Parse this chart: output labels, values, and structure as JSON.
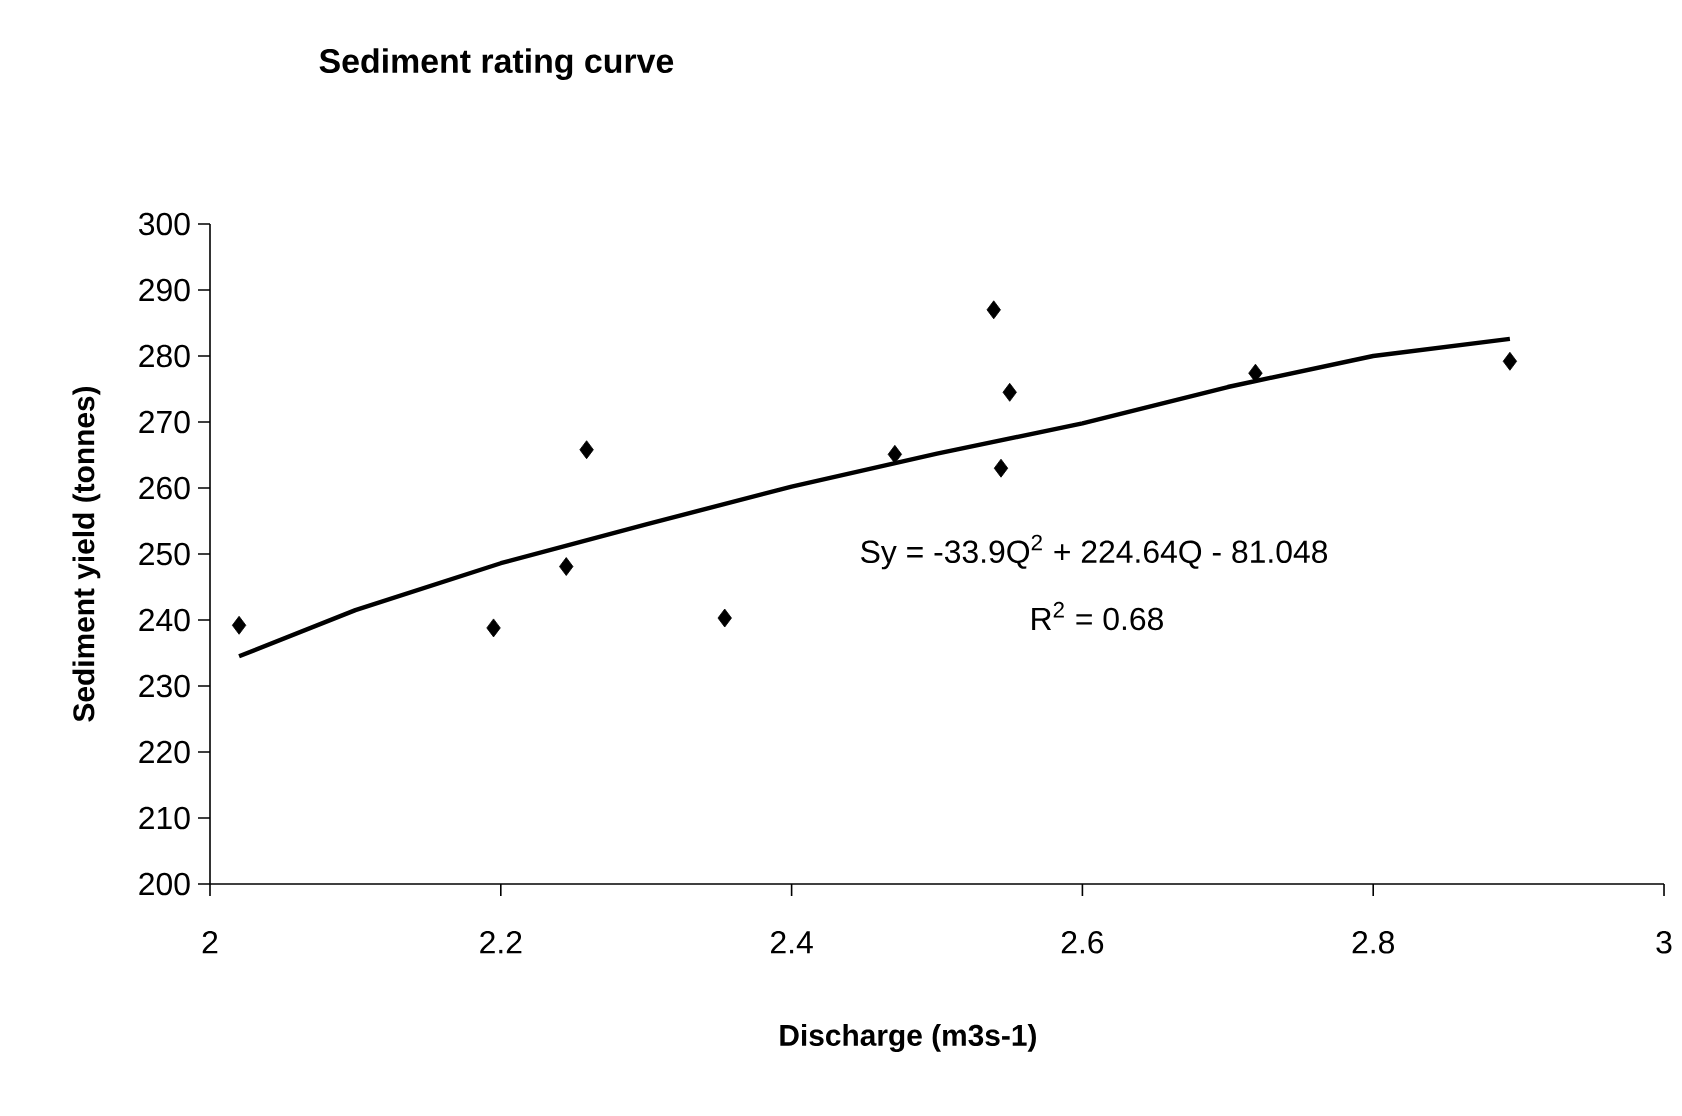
{
  "chart_data": {
    "type": "scatter",
    "title": "Sediment rating curve",
    "xlabel": "Discharge (m3s-1)",
    "ylabel": "Sediment yield (tonnes)",
    "annotations": [
      "Sy = -33.9Q$^{2}$ + 224.64Q - 81.048",
      "R$^{2}$ = 0.68"
    ],
    "xlim": [
      2,
      3
    ],
    "ylim": [
      200,
      300
    ],
    "xticks": [
      2,
      2.2,
      2.4,
      2.6,
      2.8,
      3
    ],
    "yticks": [
      200,
      210,
      220,
      230,
      240,
      250,
      260,
      270,
      280,
      290,
      300
    ],
    "series": [
      {
        "marker": "diamond",
        "color": "#000000",
        "x": [
          2.02,
          2.195,
          2.245,
          2.259,
          2.354,
          2.471,
          2.539,
          2.55,
          2.544,
          2.719,
          2.894
        ],
        "values": [
          239.2,
          238.8,
          248.1,
          265.8,
          240.3,
          265.1,
          287.0,
          274.5,
          263.0,
          277.4,
          279.2
        ]
      },
      {
        "type": "line",
        "marker": "none",
        "line_style": "solid",
        "color": "#000000",
        "x": [
          2.02,
          2.1,
          2.2,
          2.3,
          2.4,
          2.5,
          2.6,
          2.7,
          2.8,
          2.894
        ],
        "values": [
          234.5,
          241.5,
          248.6,
          254.5,
          260.2,
          265.2,
          269.8,
          275.3,
          280.0,
          282.6
        ]
      }
    ]
  }
}
